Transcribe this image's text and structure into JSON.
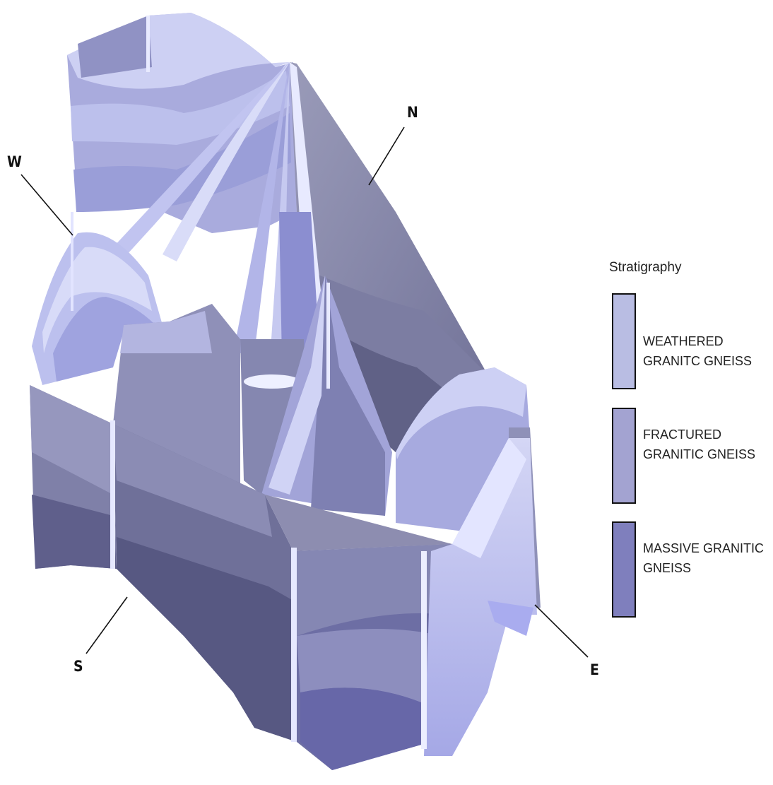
{
  "compass": {
    "north": "N",
    "west": "W",
    "south": "S",
    "east": "E"
  },
  "legend": {
    "title": "Stratigraphy",
    "items": [
      {
        "name": "weathered-granitic-gneiss",
        "label": "WEATHERED GRANITC GNEISS",
        "color": "#b9bde3"
      },
      {
        "name": "fractured-granitic-gneiss",
        "label": "FRACTURED GRANITIC GNEISS",
        "color": "#a3a3d1"
      },
      {
        "name": "massive-granitic-gneiss",
        "label": "MASSIVE GRANITIC GNEISS",
        "color": "#7f7fbd"
      }
    ]
  },
  "colors": {
    "weathered_light": "#cfd2f3",
    "weathered_shadow": "#9a9fc4",
    "fractured_light": "#a9abdb",
    "fractured_shadow": "#8789a8",
    "massive_light": "#8585c3",
    "massive_shadow": "#5a5a86",
    "highlight": "#eef0ff"
  }
}
